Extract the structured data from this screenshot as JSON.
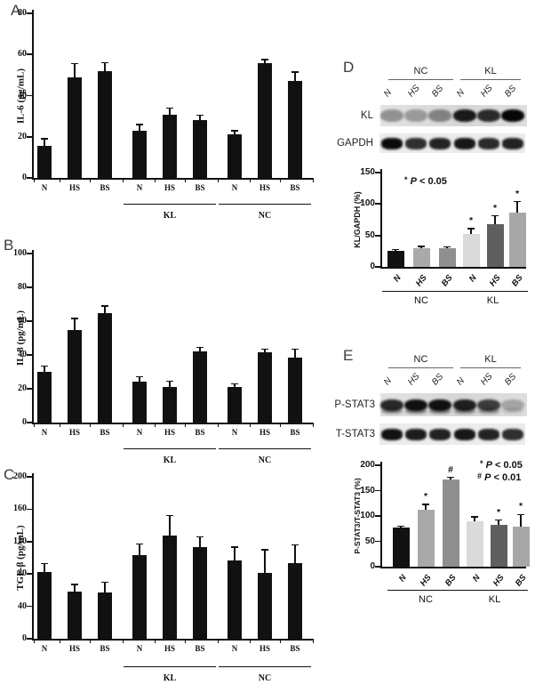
{
  "panels": {
    "A": {
      "label": "A"
    },
    "B": {
      "label": "B"
    },
    "C": {
      "label": "C"
    },
    "D": {
      "label": "D",
      "blot": {
        "group_headers": [
          "NC",
          "KL"
        ],
        "lane_labels": [
          "N",
          "HS",
          "BS",
          "N",
          "HS",
          "BS"
        ],
        "rows": [
          {
            "label": "KL",
            "style": "strip",
            "band_intensities": [
              0.35,
              0.3,
              0.4,
              0.88,
              0.8,
              0.97
            ]
          },
          {
            "label": "GAPDH",
            "style": "chips",
            "band_intensities": [
              0.95,
              0.8,
              0.85,
              0.9,
              0.82,
              0.85
            ]
          }
        ]
      }
    },
    "E": {
      "label": "E",
      "blot": {
        "group_headers": [
          "NC",
          "KL"
        ],
        "lane_labels": [
          "N",
          "HS",
          "BS",
          "N",
          "HS",
          "BS"
        ],
        "rows": [
          {
            "label": "P-STAT3",
            "style": "strip",
            "doublet": true,
            "band_intensities": [
              0.82,
              0.92,
              0.92,
              0.85,
              0.72,
              0.25
            ]
          },
          {
            "label": "T-STAT3",
            "style": "chips",
            "band_intensities": [
              0.92,
              0.88,
              0.86,
              0.9,
              0.85,
              0.8
            ]
          }
        ]
      }
    }
  },
  "chart_data": [
    {
      "id": "A",
      "type": "bar",
      "title": "",
      "ylabel": "IL-6 (pg/mL)",
      "ylim": [
        0,
        80
      ],
      "yticks": [
        0,
        20,
        40,
        60,
        80
      ],
      "grid": false,
      "categories": [
        "N",
        "HS",
        "BS",
        "N",
        "HS",
        "BS",
        "N",
        "HS",
        "BS"
      ],
      "groups": [
        {
          "label": "KL",
          "from": 3,
          "to": 5
        },
        {
          "label": "NC",
          "from": 6,
          "to": 8
        }
      ],
      "values": [
        15.5,
        49,
        52,
        23,
        30.5,
        28,
        21,
        56,
        47
      ],
      "errors": [
        3.5,
        6.5,
        4,
        3,
        3.5,
        2.5,
        2,
        1.5,
        4.5
      ],
      "bar_color": "#111111"
    },
    {
      "id": "B",
      "type": "bar",
      "title": "",
      "ylabel": "IL-8 (pg/mL)",
      "ylim": [
        0,
        100
      ],
      "yticks": [
        0,
        20,
        40,
        60,
        80,
        100
      ],
      "grid": false,
      "categories": [
        "N",
        "HS",
        "BS",
        "N",
        "HS",
        "BS",
        "N",
        "HS",
        "BS"
      ],
      "groups": [
        {
          "label": "KL",
          "from": 3,
          "to": 5
        },
        {
          "label": "NC",
          "from": 6,
          "to": 8
        }
      ],
      "values": [
        30,
        54.5,
        64.5,
        24,
        21,
        42,
        21,
        41.5,
        38.5
      ],
      "errors": [
        3.5,
        7,
        4.5,
        3,
        3.5,
        2.5,
        2,
        2,
        5
      ],
      "bar_color": "#111111"
    },
    {
      "id": "C",
      "type": "bar",
      "title": "",
      "ylabel": "TGF-β (pg/mL)",
      "ylim": [
        0,
        200
      ],
      "yticks": [
        0,
        40,
        80,
        120,
        160,
        200
      ],
      "grid": false,
      "categories": [
        "N",
        "HS",
        "BS",
        "N",
        "HS",
        "BS",
        "N",
        "HS",
        "BS"
      ],
      "groups": [
        {
          "label": "KL",
          "from": 3,
          "to": 5
        },
        {
          "label": "NC",
          "from": 6,
          "to": 8
        }
      ],
      "values": [
        82,
        58,
        57,
        103,
        128,
        113,
        97,
        81,
        93
      ],
      "errors": [
        11,
        9,
        13,
        14,
        24,
        13,
        16,
        29,
        23
      ],
      "bar_color": "#111111"
    },
    {
      "id": "D",
      "type": "bar",
      "title": "",
      "ylabel": "KL/GAPDH (%)",
      "ylim": [
        0,
        150
      ],
      "yticks": [
        0,
        50,
        100,
        150
      ],
      "grid": false,
      "categories": [
        "N",
        "HS",
        "BS",
        "N",
        "HS",
        "BS"
      ],
      "groups": [
        {
          "label": "NC",
          "from": 0,
          "to": 2
        },
        {
          "label": "KL",
          "from": 3,
          "to": 5
        }
      ],
      "values": [
        26,
        30,
        30,
        53,
        68,
        87
      ],
      "errors": [
        1.5,
        2.5,
        1.5,
        8,
        13,
        17
      ],
      "bar_colors": [
        "#121212",
        "#a9a9a9",
        "#8f8f8f",
        "#dadada",
        "#5f5f5f",
        "#a7a7a7"
      ],
      "sig": [
        "",
        "",
        "",
        "*",
        "*",
        "*"
      ],
      "annotations": [
        {
          "text": "* P < 0.05"
        }
      ]
    },
    {
      "id": "E",
      "type": "bar",
      "title": "",
      "ylabel": "P-STAT3/T-STAT3 (%)",
      "ylim": [
        0,
        200
      ],
      "yticks": [
        0,
        50,
        100,
        150,
        200
      ],
      "grid": false,
      "categories": [
        "N",
        "HS",
        "BS",
        "N",
        "HS",
        "BS"
      ],
      "groups": [
        {
          "label": "NC",
          "from": 0,
          "to": 2
        },
        {
          "label": "KL",
          "from": 3,
          "to": 5
        }
      ],
      "values": [
        78,
        113,
        172,
        90,
        83,
        79
      ],
      "errors": [
        2,
        10,
        4,
        8,
        9,
        24
      ],
      "bar_colors": [
        "#121212",
        "#a9a9a9",
        "#8f8f8f",
        "#dadada",
        "#5f5f5f",
        "#a7a7a7"
      ],
      "sig": [
        "",
        "*",
        "#",
        "",
        "*",
        "*"
      ],
      "annotations": [
        {
          "text": "* P < 0.05"
        },
        {
          "text": "# P < 0.01"
        }
      ]
    }
  ]
}
